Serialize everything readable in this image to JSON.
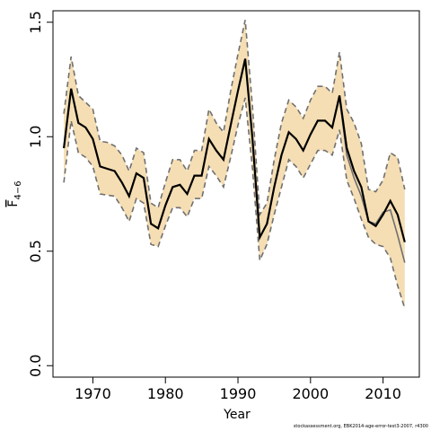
{
  "chart_data": {
    "type": "line",
    "xlabel": "Year",
    "ylabel": "F",
    "ylabel_sub": "4−6",
    "xlim": [
      1964.5,
      2015
    ],
    "ylim": [
      -0.05,
      1.55
    ],
    "xticks": [
      1970,
      1980,
      1990,
      2000,
      2010
    ],
    "yticks": [
      0.0,
      0.5,
      1.0,
      1.5
    ],
    "ytick_labels": [
      "0.0",
      "0.5",
      "1.0",
      "1.5"
    ],
    "grid": false,
    "colors": {
      "band": "#f5deb3",
      "dashed": "#707070",
      "main": "#000000",
      "alt": "#707070"
    },
    "x": [
      1966,
      1967,
      1968,
      1969,
      1970,
      1971,
      1972,
      1973,
      1974,
      1975,
      1976,
      1977,
      1978,
      1979,
      1980,
      1981,
      1982,
      1983,
      1984,
      1985,
      1986,
      1987,
      1988,
      1989,
      1990,
      1991,
      1992,
      1993,
      1994,
      1995,
      1996,
      1997,
      1998,
      1999,
      2000,
      2001,
      2002,
      2003,
      2004,
      2005,
      2006,
      2007,
      2008,
      2009,
      2010,
      2011,
      2012,
      2013
    ],
    "series": [
      {
        "values": [
          0.95,
          1.21,
          1.06,
          1.04,
          0.99,
          0.87,
          0.86,
          0.85,
          0.8,
          0.74,
          0.84,
          0.82,
          0.62,
          0.6,
          0.7,
          0.78,
          0.79,
          0.75,
          0.83,
          0.83,
          0.99,
          0.94,
          0.9,
          1.05,
          1.2,
          1.34,
          0.99,
          0.56,
          0.62,
          0.78,
          0.92,
          1.02,
          0.99,
          0.94,
          1.01,
          1.07,
          1.07,
          1.04,
          1.18,
          0.95,
          0.85,
          0.78,
          0.63,
          0.61,
          0.66,
          0.72,
          0.66,
          0.54
        ]
      },
      {
        "values": [
          0.95,
          1.21,
          1.06,
          1.04,
          0.99,
          0.87,
          0.86,
          0.85,
          0.8,
          0.74,
          0.84,
          0.82,
          0.62,
          0.6,
          0.7,
          0.78,
          0.79,
          0.75,
          0.83,
          0.83,
          0.99,
          0.94,
          0.9,
          1.05,
          1.2,
          1.34,
          0.99,
          0.56,
          0.62,
          0.78,
          0.92,
          1.02,
          0.99,
          0.94,
          1.01,
          1.07,
          1.07,
          1.04,
          1.17,
          0.92,
          0.82,
          0.74,
          0.63,
          0.62,
          0.67,
          0.68,
          0.57,
          0.45
        ]
      }
    ],
    "band": {
      "lower": [
        0.8,
        1.07,
        0.93,
        0.91,
        0.87,
        0.75,
        0.745,
        0.74,
        0.69,
        0.63,
        0.73,
        0.71,
        0.53,
        0.52,
        0.61,
        0.69,
        0.69,
        0.65,
        0.73,
        0.73,
        0.87,
        0.83,
        0.78,
        0.91,
        1.05,
        1.17,
        0.86,
        0.46,
        0.53,
        0.66,
        0.78,
        0.9,
        0.87,
        0.82,
        0.88,
        0.94,
        0.94,
        0.92,
        1.03,
        0.81,
        0.73,
        0.64,
        0.56,
        0.53,
        0.52,
        0.47,
        0.35,
        0.25
      ],
      "upper": [
        1.1,
        1.35,
        1.18,
        1.15,
        1.12,
        0.98,
        0.975,
        0.96,
        0.92,
        0.85,
        0.95,
        0.93,
        0.71,
        0.69,
        0.8,
        0.9,
        0.9,
        0.85,
        0.94,
        0.94,
        1.12,
        1.06,
        1.02,
        1.2,
        1.36,
        1.51,
        1.13,
        0.66,
        0.71,
        0.9,
        1.06,
        1.16,
        1.13,
        1.08,
        1.16,
        1.22,
        1.22,
        1.19,
        1.37,
        1.12,
        1.06,
        0.97,
        0.77,
        0.76,
        0.81,
        0.93,
        0.91,
        0.77
      ]
    }
  },
  "footer": {
    "text": "stockassessment.org, EBK2014-age-error-test3-2007, r4300"
  }
}
